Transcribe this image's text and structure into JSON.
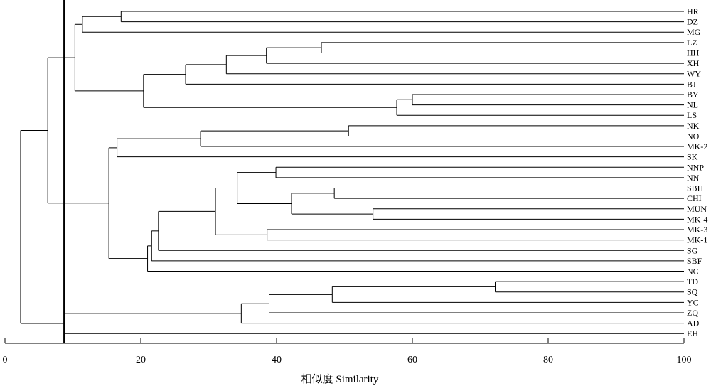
{
  "chart_data": {
    "type": "dendrogram",
    "xlabel": "相似度 Similarity",
    "xlim": [
      0,
      100
    ],
    "xticks": [
      0,
      20,
      40,
      60,
      80,
      100
    ],
    "cutoff": 8.7,
    "leaves": [
      "HR",
      "DZ",
      "MG",
      "LZ",
      "HH",
      "XH",
      "WY",
      "BJ",
      "BY",
      "NL",
      "LS",
      "NK",
      "NO",
      "MK-2",
      "SK",
      "NNP",
      "NN",
      "SBH",
      "CHI",
      "MUN",
      "MK-4",
      "MK-3",
      "MK-1",
      "SG",
      "SBF",
      "NC",
      "TD",
      "SQ",
      "YC",
      "ZQ",
      "AD",
      "EH"
    ],
    "merges": [
      {
        "id": "c1",
        "a": "HR",
        "b": "DZ",
        "sim": 17.1
      },
      {
        "id": "c2",
        "a": "c1",
        "b": "MG",
        "sim": 11.4
      },
      {
        "id": "c3",
        "a": "LZ",
        "b": "HH",
        "sim": 46.6
      },
      {
        "id": "c4",
        "a": "c3",
        "b": "XH",
        "sim": 38.5
      },
      {
        "id": "c5",
        "a": "c4",
        "b": "WY",
        "sim": 32.6
      },
      {
        "id": "c6",
        "a": "c5",
        "b": "BJ",
        "sim": 26.6
      },
      {
        "id": "c7",
        "a": "BY",
        "b": "NL",
        "sim": 60.0
      },
      {
        "id": "c8",
        "a": "c7",
        "b": "LS",
        "sim": 57.7
      },
      {
        "id": "c9",
        "a": "c6",
        "b": "c8",
        "sim": 20.4
      },
      {
        "id": "c10",
        "a": "c2",
        "b": "c9",
        "sim": 10.3
      },
      {
        "id": "c11",
        "a": "NK",
        "b": "NO",
        "sim": 50.6
      },
      {
        "id": "c12",
        "a": "c11",
        "b": "MK-2",
        "sim": 28.8
      },
      {
        "id": "c13",
        "a": "c12",
        "b": "SK",
        "sim": 16.5
      },
      {
        "id": "c14",
        "a": "NNP",
        "b": "NN",
        "sim": 39.9
      },
      {
        "id": "c15",
        "a": "SBH",
        "b": "CHI",
        "sim": 48.5
      },
      {
        "id": "c16",
        "a": "MUN",
        "b": "MK-4",
        "sim": 54.2
      },
      {
        "id": "c17",
        "a": "c15",
        "b": "c16",
        "sim": 42.2
      },
      {
        "id": "c18",
        "a": "c14",
        "b": "c17",
        "sim": 34.2
      },
      {
        "id": "c19",
        "a": "MK-3",
        "b": "MK-1",
        "sim": 38.6
      },
      {
        "id": "c20",
        "a": "c18",
        "b": "c19",
        "sim": 31.0
      },
      {
        "id": "c21",
        "a": "c20",
        "b": "SG",
        "sim": 22.6
      },
      {
        "id": "c22",
        "a": "c21",
        "b": "SBF",
        "sim": 21.6
      },
      {
        "id": "c23",
        "a": "c22",
        "b": "NC",
        "sim": 21.0
      },
      {
        "id": "c24",
        "a": "c13",
        "b": "c23",
        "sim": 15.3
      },
      {
        "id": "c25",
        "a": "c10",
        "b": "c24",
        "sim": 6.3
      },
      {
        "id": "c26",
        "a": "TD",
        "b": "SQ",
        "sim": 72.2
      },
      {
        "id": "c27",
        "a": "c26",
        "b": "YC",
        "sim": 48.2
      },
      {
        "id": "c28",
        "a": "c27",
        "b": "ZQ",
        "sim": 38.9
      },
      {
        "id": "c29",
        "a": "c28",
        "b": "AD",
        "sim": 34.8
      },
      {
        "id": "c30",
        "a": "c29",
        "b": "EH",
        "sim": 8.7
      },
      {
        "id": "c31",
        "a": "c25",
        "b": "c30",
        "sim": 2.3
      }
    ]
  }
}
